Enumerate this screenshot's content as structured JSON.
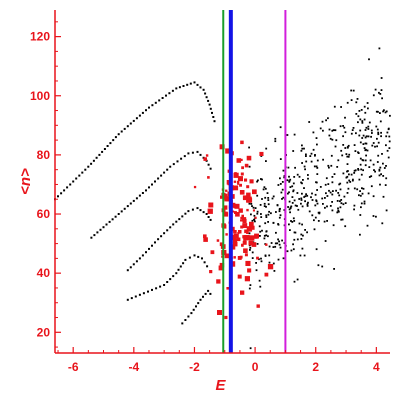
{
  "chart_data": {
    "type": "scatter",
    "xlabel": "E",
    "ylabel": "<n>",
    "xlim": [
      -6.6,
      4.45
    ],
    "ylim": [
      13,
      129
    ],
    "x_ticks": [
      -6,
      -4,
      -2,
      0,
      2,
      4
    ],
    "y_ticks": [
      20,
      40,
      60,
      80,
      100,
      120
    ],
    "x_tick_labels": [
      "-6",
      "-4",
      "-2",
      "0",
      "2",
      "4"
    ],
    "y_tick_labels": [
      "20",
      "40",
      "60",
      "80",
      "100",
      "120"
    ],
    "grid": false,
    "legend": "none",
    "colors": {
      "axis": "#e8141b",
      "black_points": "#000000",
      "red_points": "#e8141b",
      "green_line": "#1b9e2a",
      "blue_line": "#1414e6",
      "magenta_line": "#d21edc"
    },
    "vertical_lines": [
      {
        "x": -1.05,
        "color": "#1b9e2a",
        "width": 2
      },
      {
        "x": -0.8,
        "color": "#1414e6",
        "width": 4
      },
      {
        "x": 1.0,
        "color": "#d21edc",
        "width": 2
      }
    ],
    "dotted_curves": [
      {
        "points": [
          [
            -6.6,
            65
          ],
          [
            -5.5,
            76
          ],
          [
            -4.5,
            87
          ],
          [
            -3.5,
            96
          ],
          [
            -2.6,
            102.5
          ],
          [
            -2.0,
            104.5
          ],
          [
            -1.7,
            102
          ],
          [
            -1.5,
            97
          ],
          [
            -1.3,
            90
          ]
        ]
      },
      {
        "points": [
          [
            -5.4,
            52
          ],
          [
            -4.5,
            60
          ],
          [
            -3.6,
            68
          ],
          [
            -2.8,
            76
          ],
          [
            -2.2,
            80.5
          ],
          [
            -1.9,
            81
          ],
          [
            -1.6,
            78
          ],
          [
            -1.4,
            74
          ]
        ]
      },
      {
        "points": [
          [
            -4.2,
            41
          ],
          [
            -3.7,
            46
          ],
          [
            -3.2,
            51.5
          ],
          [
            -2.7,
            56.5
          ],
          [
            -2.2,
            61
          ],
          [
            -1.9,
            62
          ],
          [
            -1.6,
            60
          ],
          [
            -1.4,
            57
          ]
        ]
      },
      {
        "points": [
          [
            -4.2,
            31
          ],
          [
            -3.0,
            36
          ],
          [
            -2.6,
            40
          ],
          [
            -2.3,
            44.5
          ],
          [
            -2.0,
            46
          ],
          [
            -1.75,
            45
          ],
          [
            -1.5,
            41
          ]
        ]
      },
      {
        "points": [
          [
            -2.4,
            23
          ],
          [
            -2.1,
            26.5
          ],
          [
            -1.8,
            31
          ],
          [
            -1.55,
            34
          ],
          [
            -1.4,
            32
          ]
        ]
      }
    ],
    "black_cloud": {
      "x_range": [
        -0.2,
        4.45
      ],
      "center_slope": 7.4,
      "center_intercept": 54,
      "spread": 11,
      "count": 520
    },
    "red_cluster": {
      "x_range": [
        -2.0,
        0.8
      ],
      "center": [
        -0.7,
        58
      ],
      "spread_x": 0.45,
      "spread_y": 11,
      "count": 150
    }
  }
}
